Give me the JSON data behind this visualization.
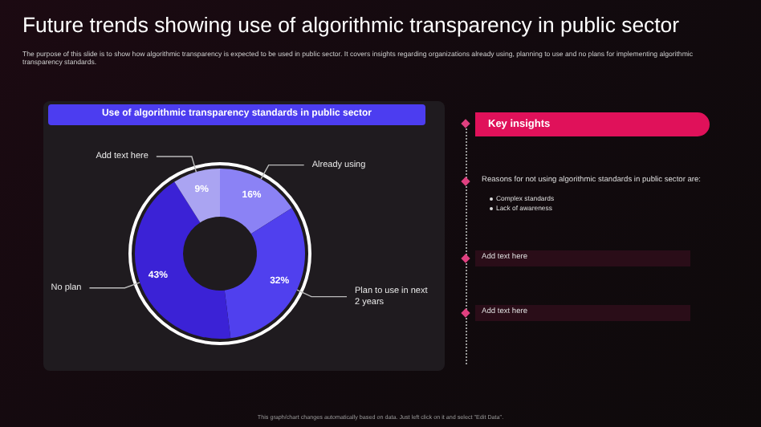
{
  "chart_data": {
    "type": "donut",
    "title": "Future trends showing use of algorithmic transparency in public sector",
    "subtitle": "The purpose of this slide is to show how algorithmic transparency is expected to be used in public sector. It covers insights regarding organizations already using, planning to use and no plans for implementing algorithmic transparency standards.",
    "categories": [
      "Already using",
      "Plan to use in next 2 years",
      "No plan",
      "Add text here"
    ],
    "values": [
      16,
      32,
      43,
      9
    ],
    "colors": [
      "#8b82f5",
      "#5040ee",
      "#3b22d6",
      "#aaa4f2"
    ],
    "value_labels": [
      "16%",
      "32%",
      "43%",
      "9%"
    ],
    "legend": false,
    "annotations": [
      "Use of algorithmic transparency standards in public sector",
      "Key insights",
      "Reasons for not using algorithmic standards in public sector are:",
      "Complex standards",
      "Lack of awareness",
      "Add text here",
      "Add text here",
      "This graph/chart changes automatically based on data. Just left click on it and select \"Edit Data\"."
    ]
  }
}
